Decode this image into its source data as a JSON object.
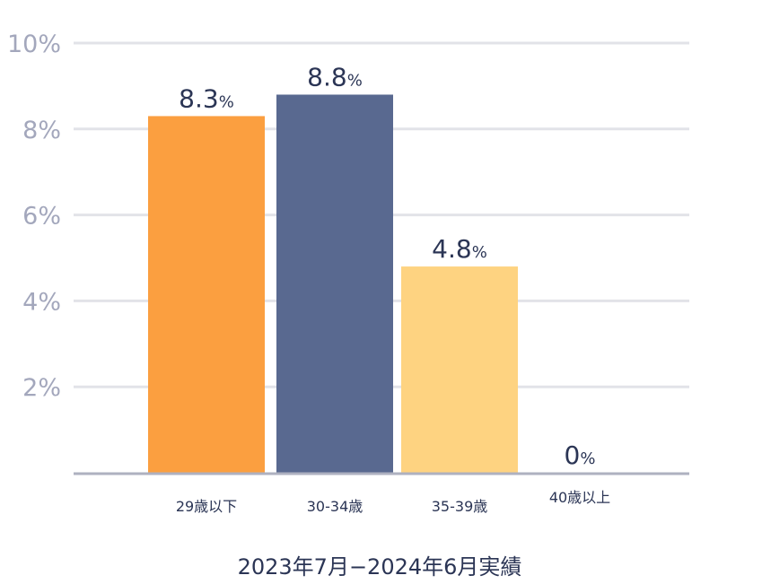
{
  "chart_data": {
    "type": "bar",
    "categories": [
      "29歳以下",
      "30-34歳",
      "35-39歳",
      "40歳以上"
    ],
    "values": [
      8.3,
      8.8,
      4.8,
      0
    ],
    "value_labels": [
      "8.3",
      "8.8",
      "4.8",
      "0"
    ],
    "value_unit": "%",
    "colors": [
      "#fb9f40",
      "#596990",
      "#fed381",
      "#596990"
    ],
    "ylim": [
      0,
      10
    ],
    "yticks": [
      2,
      4,
      6,
      8,
      10
    ],
    "ytick_labels": [
      "2%",
      "4%",
      "6%",
      "8%",
      "10%"
    ],
    "grid": true,
    "xlabel": "2023年7月−2024年6月実績"
  }
}
